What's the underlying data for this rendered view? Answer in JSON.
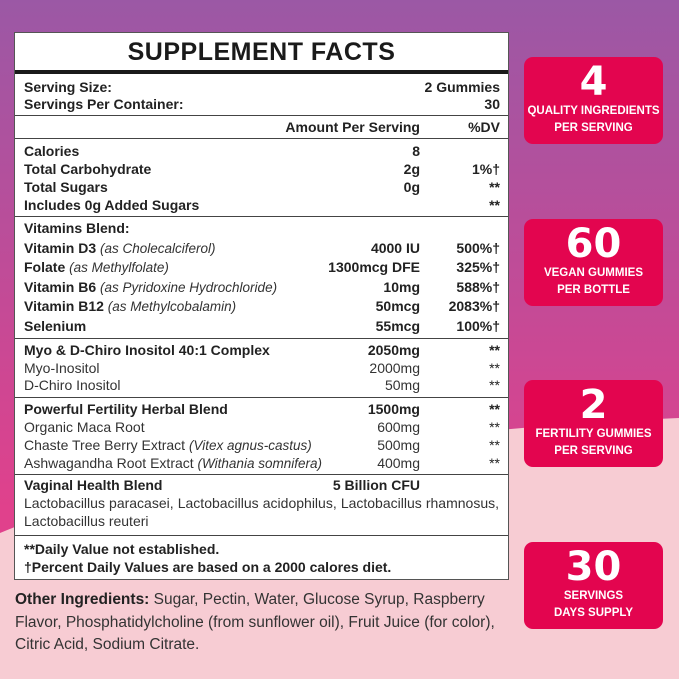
{
  "colors": {
    "bg_top": "#9b58a5",
    "bg_mid": "#e0418c",
    "bg_bottom": "#f7ccd3",
    "badge": "#e3054f"
  },
  "title": "SUPPLEMENT FACTS",
  "serving": {
    "size_label": "Serving Size:",
    "size_value": "2 Gummies",
    "per_container_label": "Servings Per Container:",
    "per_container_value": "30"
  },
  "header": {
    "amount": "Amount Per Serving",
    "dv": "%DV"
  },
  "sections": [
    [
      {
        "n": "Calories",
        "a": "8",
        "d": "",
        "style": "b"
      },
      {
        "n": "Total Carbohydrate",
        "a": "2g",
        "d": "1%†",
        "style": "b"
      },
      {
        "n": "Total Sugars",
        "a": "0g",
        "d": "**",
        "style": "b"
      },
      {
        "n": "Includes 0g Added Sugars",
        "a": "",
        "d": "**",
        "style": "b"
      }
    ],
    [
      {
        "n": "Vitamins Blend:",
        "a": "",
        "d": "",
        "style": "b"
      },
      {
        "n": "Vitamin D3",
        "sub": "(as Cholecalciferol)",
        "a": "4000 IU",
        "d": "500%†",
        "style": "b"
      },
      {
        "n": "Folate",
        "sub": "(as Methylfolate)",
        "a": "1300mcg DFE",
        "d": "325%†",
        "style": "b"
      },
      {
        "n": "Vitamin B6",
        "sub": "(as Pyridoxine Hydrochloride)",
        "a": "10mg",
        "d": "588%†",
        "style": "b"
      },
      {
        "n": "Vitamin B12",
        "sub": "(as Methylcobalamin)",
        "a": "50mcg",
        "d": "2083%†",
        "style": "b"
      },
      {
        "n": "Selenium",
        "a": "55mcg",
        "d": "100%†",
        "style": "b"
      }
    ],
    [
      {
        "n": "Myo & D-Chiro Inositol 40:1 Complex",
        "a": "2050mg",
        "d": "**",
        "style": "b"
      },
      {
        "n": "Myo-Inositol",
        "a": "2000mg",
        "d": "**",
        "style": "s"
      },
      {
        "n": "D-Chiro Inositol",
        "a": "50mg",
        "d": "**",
        "style": "s"
      }
    ],
    [
      {
        "n": "Powerful Fertility Herbal Blend",
        "a": "1500mg",
        "d": "**",
        "style": "b"
      },
      {
        "n": "Organic Maca Root",
        "a": "600mg",
        "d": "**",
        "style": "s"
      },
      {
        "n": "Chaste Tree Berry Extract",
        "sub": "(Vitex agnus-castus)",
        "a": "500mg",
        "d": "**",
        "style": "s"
      },
      {
        "n": "Ashwagandha Root Extract",
        "sub": "(Withania somnifera)",
        "a": "400mg",
        "d": "**",
        "style": "s"
      }
    ],
    [
      {
        "n": "Vaginal Health Blend",
        "a": "5 Billion CFU",
        "d": "",
        "style": "b"
      },
      {
        "n": "Lactobacillus paracasei, Lactobacillus acidophilus, Lactobacillus rhamnosus, Lactobacillus reuteri",
        "a": "",
        "d": "",
        "style": "full"
      }
    ],
    [
      {
        "n": "**Daily Value not established.",
        "a": "",
        "d": "",
        "style": "b"
      },
      {
        "n": "†Percent Daily Values are based on a 2000 calores diet.",
        "a": "",
        "d": "",
        "style": "b"
      }
    ]
  ],
  "other": {
    "label": "Other Ingredients:",
    "text": " Sugar, Pectin, Water, Glucose Syrup, Raspberry Flavor, Phosphatidylcholine (from sunflower oil), Fruit Juice (for color), Citric Acid, Sodium Citrate."
  },
  "badges": [
    {
      "num": "4",
      "l1": "QUALITY INGREDIENTS",
      "l2": "PER SERVING"
    },
    {
      "num": "60",
      "l1": "VEGAN GUMMIES",
      "l2": "PER BOTTLE"
    },
    {
      "num": "2",
      "l1": "FERTILITY GUMMIES",
      "l2": "PER SERVING"
    },
    {
      "num": "30",
      "l1": "SERVINGS",
      "l2": "DAYS SUPPLY"
    }
  ]
}
